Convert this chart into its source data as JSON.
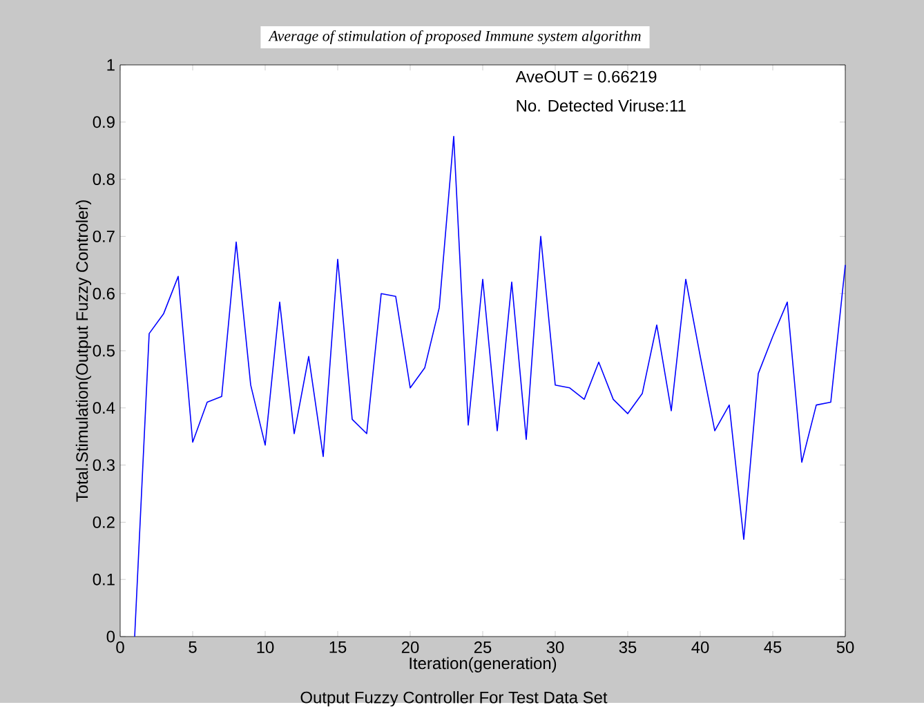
{
  "chart_data": {
    "type": "line",
    "title": "Average of  stimulation of proposed  Immune system algorithm",
    "xlabel": "Iteration(generation)",
    "ylabel": "Total.Stimulation(Output Fuzzy Controler)",
    "annotations": [
      "AveOUT = 0.66219",
      "No. Detected Viruse:11",
      "Output Fuzzy Controller For Test Data Set"
    ],
    "x": [
      1,
      2,
      3,
      4,
      5,
      6,
      7,
      8,
      9,
      10,
      11,
      12,
      13,
      14,
      15,
      16,
      17,
      18,
      19,
      20,
      21,
      22,
      23,
      24,
      25,
      26,
      27,
      28,
      29,
      30,
      31,
      32,
      33,
      34,
      35,
      36,
      37,
      38,
      39,
      40,
      41,
      42,
      43,
      44,
      45,
      46,
      47,
      48,
      49,
      50
    ],
    "series": [
      {
        "color": "#0000ff",
        "values": [
          0,
          0.53,
          0.565,
          0.63,
          0.34,
          0.41,
          0.42,
          0.69,
          0.44,
          0.335,
          0.585,
          0.355,
          0.49,
          0.315,
          0.66,
          0.38,
          0.355,
          0.6,
          0.595,
          0.435,
          0.47,
          0.575,
          0.875,
          0.37,
          0.625,
          0.36,
          0.62,
          0.345,
          0.7,
          0.44,
          0.435,
          0.415,
          0.48,
          0.415,
          0.39,
          0.425,
          0.545,
          0.395,
          0.625,
          0.49,
          0.36,
          0.405,
          0.17,
          0.46,
          0.525,
          0.585,
          0.305,
          0.405,
          0.41,
          0.65
        ]
      }
    ],
    "xlim": [
      0,
      50
    ],
    "ylim": [
      0,
      1
    ],
    "xticks": [
      0,
      5,
      10,
      15,
      20,
      25,
      30,
      35,
      40,
      45,
      50
    ],
    "yticks": [
      0,
      0.1,
      0.2,
      0.3,
      0.4,
      0.5,
      0.6,
      0.7,
      0.8,
      0.9,
      1
    ],
    "grid": false,
    "marker": "none",
    "line_style": "solid"
  }
}
